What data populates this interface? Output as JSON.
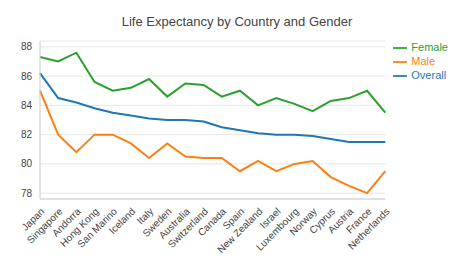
{
  "chart_data": {
    "type": "line",
    "title": "Life Expectancy by Country and Gender",
    "categories": [
      "Japan",
      "Singapore",
      "Andorra",
      "Hong Kong",
      "San Marino",
      "Iceland",
      "Italy",
      "Sweden",
      "Australia",
      "Switzerland",
      "Canada",
      "Spain",
      "New Zealand",
      "Israel",
      "Luxembourg",
      "Norway",
      "Cyprus",
      "Austria",
      "France",
      "Netherlands"
    ],
    "series": [
      {
        "name": "Overall",
        "color": "#1f77b4",
        "values": [
          86.2,
          84.5,
          84.2,
          83.8,
          83.5,
          83.3,
          83.1,
          83.0,
          83.0,
          82.9,
          82.5,
          82.3,
          82.1,
          82.0,
          82.0,
          81.9,
          81.7,
          81.5,
          81.5,
          81.5
        ]
      },
      {
        "name": "Male",
        "color": "#ff7f0e",
        "values": [
          85.0,
          82.0,
          80.8,
          82.0,
          82.0,
          81.4,
          80.4,
          81.4,
          80.5,
          80.4,
          80.4,
          79.5,
          80.2,
          79.5,
          80.0,
          80.2,
          79.1,
          78.5,
          78.0,
          79.5
        ]
      },
      {
        "name": "Female",
        "color": "#2ca02c",
        "values": [
          87.3,
          87.0,
          87.6,
          85.6,
          85.0,
          85.2,
          85.8,
          84.6,
          85.5,
          85.4,
          84.6,
          85.0,
          84.0,
          84.5,
          84.1,
          83.6,
          84.3,
          84.5,
          85.0,
          83.5
        ]
      }
    ],
    "ylim": [
      77.6,
      88.4
    ],
    "yticks": [
      78,
      80,
      82,
      84,
      86,
      88
    ],
    "grid": true,
    "legend": "top right"
  }
}
